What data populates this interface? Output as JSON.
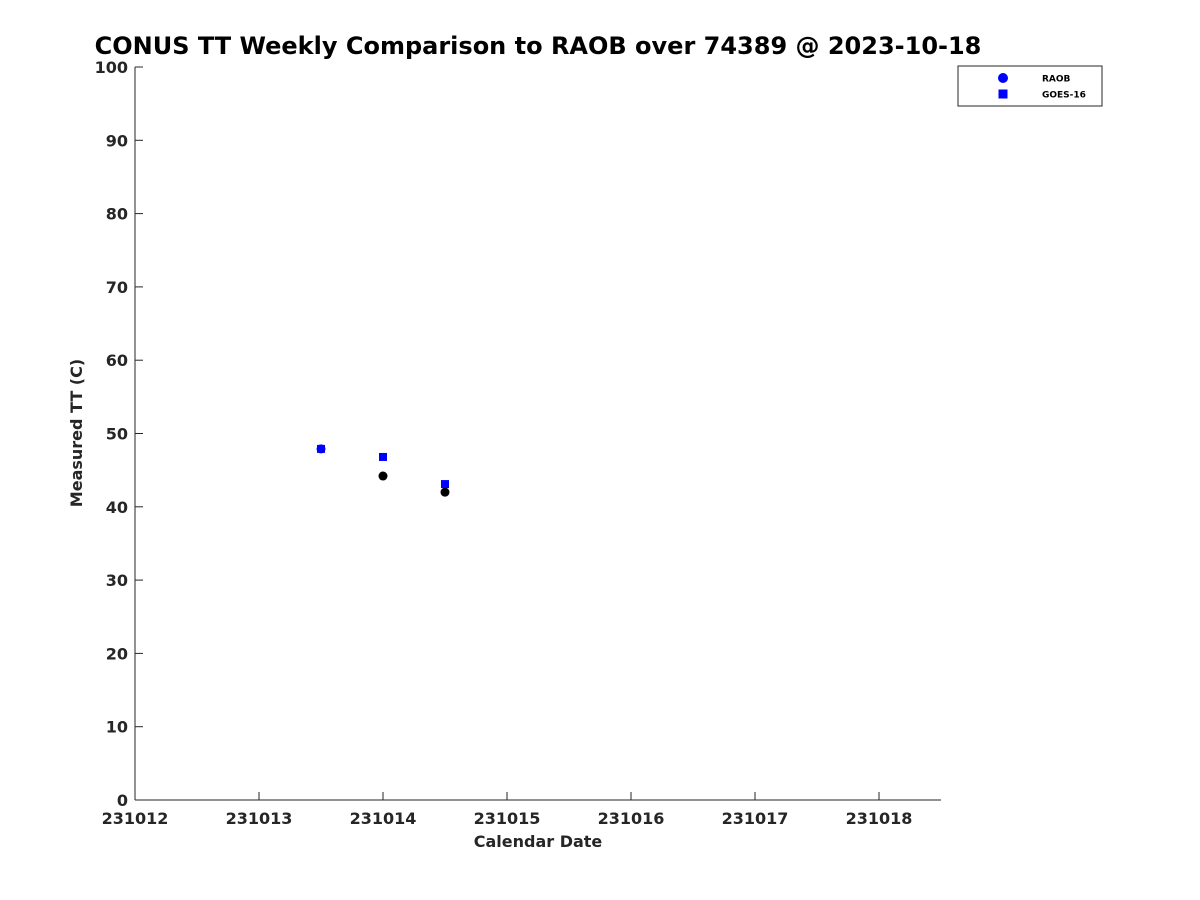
{
  "chart_data": {
    "type": "scatter",
    "title": "CONUS TT Weekly Comparison to RAOB over 74389 @ 2023-10-18",
    "xlabel": "Calendar Date",
    "ylabel": "Measured TT (C)",
    "xlim": [
      231012,
      231018.5
    ],
    "ylim": [
      0,
      100
    ],
    "x_ticks": [
      231012,
      231013,
      231014,
      231015,
      231016,
      231017,
      231018
    ],
    "x_tick_labels": [
      "231012",
      "231013",
      "231014",
      "231015",
      "231016",
      "231017",
      "231018"
    ],
    "y_ticks": [
      0,
      10,
      20,
      30,
      40,
      50,
      60,
      70,
      80,
      90,
      100
    ],
    "y_tick_labels": [
      "0",
      "10",
      "20",
      "30",
      "40",
      "50",
      "60",
      "70",
      "80",
      "90",
      "100"
    ],
    "grid": false,
    "legend_position": "top-right",
    "series": [
      {
        "name": "RAOB",
        "marker": "circle",
        "legend_color": "#0000ff",
        "x": [
          231013.5,
          231014.0,
          231014.5
        ],
        "y": [
          47.9,
          44.2,
          42.0
        ],
        "point_colors": [
          "#0000ff",
          "#000000",
          "#000000"
        ]
      },
      {
        "name": "GOES-16",
        "marker": "square",
        "legend_color": "#0000ff",
        "x": [
          231013.5,
          231014.0,
          231014.5
        ],
        "y": [
          47.9,
          46.8,
          43.1
        ],
        "point_colors": [
          "#0000ff",
          "#0000ff",
          "#0000ff"
        ]
      }
    ]
  },
  "colors": {
    "axis": "#262626",
    "legend_border": "#262626"
  }
}
